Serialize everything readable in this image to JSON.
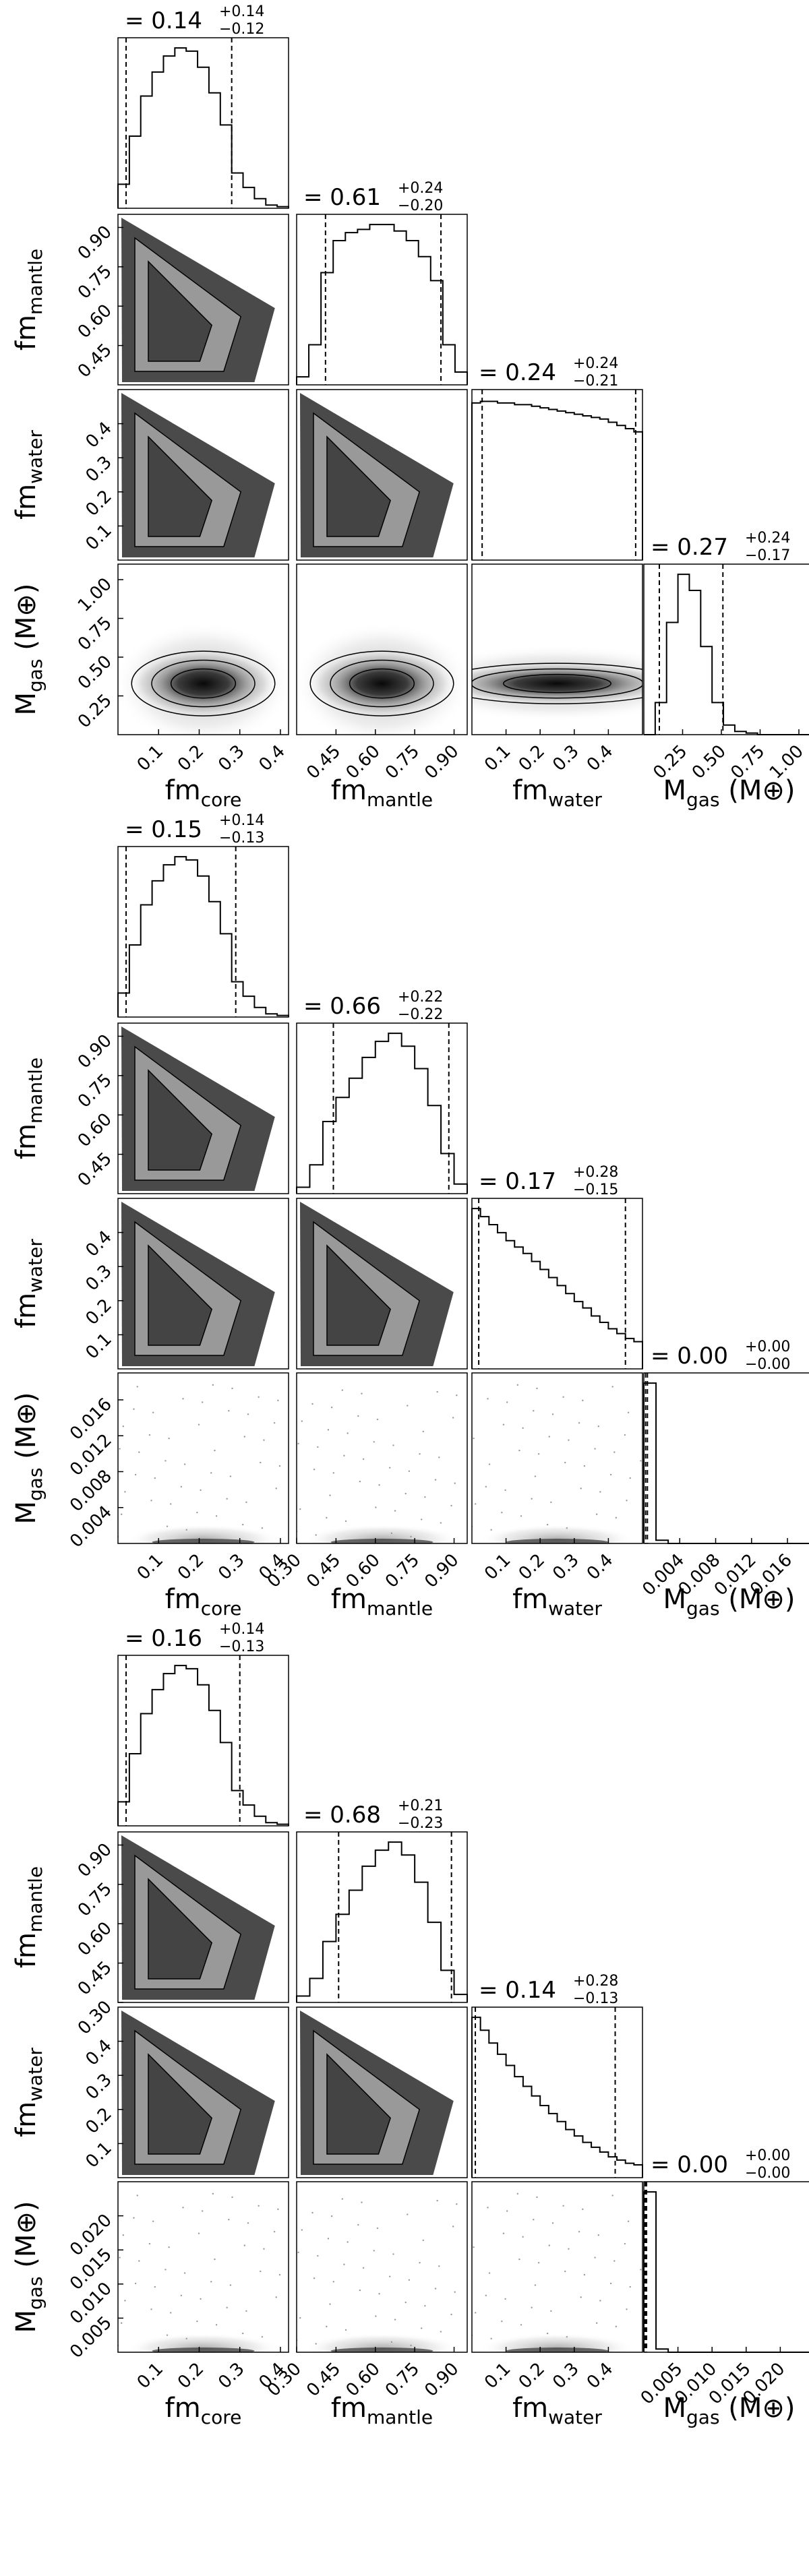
{
  "chart_data": [
    {
      "type": "corner",
      "variables": [
        "fm_core",
        "fm_mantle",
        "fm_water",
        "M_gas"
      ],
      "axis_labels": [
        {
          "main": "fm",
          "sub": "core",
          "tail": ""
        },
        {
          "main": "fm",
          "sub": "mantle",
          "tail": ""
        },
        {
          "main": "fm",
          "sub": "water",
          "tail": ""
        },
        {
          "main": "M",
          "sub": "gas",
          "tail": " (M⊕)"
        }
      ],
      "ranges": [
        [
          0.0,
          0.42
        ],
        [
          0.3,
          0.95
        ],
        [
          0.0,
          0.5
        ],
        [
          0.0,
          1.1
        ]
      ],
      "ticks": [
        [
          "0.1",
          "0.2",
          "0.3",
          "0.4"
        ],
        [
          "0.45",
          "0.60",
          "0.75",
          "0.90"
        ],
        [
          "0.1",
          "0.2",
          "0.3",
          "0.4"
        ],
        [
          "0.25",
          "0.50",
          "0.75",
          "1.00"
        ]
      ],
      "xtick_display": [
        [
          "0.1",
          "0.2",
          "0.3",
          "0.4"
        ],
        [
          "0.45",
          "0.60",
          "0.75",
          "0.90"
        ],
        [
          "0.1",
          "0.2",
          "0.3",
          "0.4"
        ],
        [
          "0.25",
          "0.50",
          "0.75",
          "1.00"
        ]
      ],
      "titles": [
        {
          "value": "0.14",
          "plus": "+0.14",
          "minus": "−0.12"
        },
        {
          "value": "0.61",
          "plus": "+0.24",
          "minus": "−0.20"
        },
        {
          "value": "0.24",
          "plus": "+0.24",
          "minus": "−0.21"
        },
        {
          "value": "0.27",
          "plus": "+0.24",
          "minus": "−0.17"
        }
      ],
      "quantiles": [
        [
          0.02,
          0.28
        ],
        [
          0.41,
          0.85
        ],
        [
          0.03,
          0.48
        ],
        [
          0.1,
          0.51
        ]
      ],
      "hist": [
        [
          0.15,
          0.45,
          0.7,
          0.85,
          0.95,
          1.0,
          0.98,
          0.88,
          0.72,
          0.52,
          0.22,
          0.13,
          0.06,
          0.02,
          0.01
        ],
        [
          0.05,
          0.25,
          0.7,
          0.9,
          0.95,
          0.97,
          1.0,
          1.0,
          0.96,
          0.9,
          0.8,
          0.65,
          0.25,
          0.08
        ],
        [
          0.98,
          0.99,
          0.99,
          0.98,
          0.98,
          0.97,
          0.97,
          0.96,
          0.95,
          0.94,
          0.93,
          0.92,
          0.91,
          0.9,
          0.89,
          0.88,
          0.86,
          0.84,
          0.82,
          0.8
        ],
        [
          0.0,
          0.2,
          0.7,
          1.0,
          0.9,
          0.55,
          0.2,
          0.06,
          0.02,
          0.01,
          0.0,
          0.0,
          0.0,
          0.0,
          0.0
        ]
      ]
    },
    {
      "type": "corner",
      "variables": [
        "fm_core",
        "fm_mantle",
        "fm_water",
        "M_gas"
      ],
      "axis_labels": [
        {
          "main": "fm",
          "sub": "core",
          "tail": ""
        },
        {
          "main": "fm",
          "sub": "mantle",
          "tail": ""
        },
        {
          "main": "fm",
          "sub": "water",
          "tail": ""
        },
        {
          "main": "M",
          "sub": "gas",
          "tail": " (M⊕)"
        }
      ],
      "ranges": [
        [
          0.0,
          0.42
        ],
        [
          0.3,
          0.95
        ],
        [
          0.0,
          0.5
        ],
        [
          0.0,
          0.019
        ]
      ],
      "ticks": [
        [
          "0.1",
          "0.2",
          "0.3",
          "0.4"
        ],
        [
          "0.45",
          "0.60",
          "0.75",
          "0.90"
        ],
        [
          "0.1",
          "0.2",
          "0.3",
          "0.4"
        ],
        [
          "0.004",
          "0.008",
          "0.012",
          "0.016"
        ]
      ],
      "xtick_display": [
        [
          "0.1",
          "0.2",
          "0.3",
          "0.4"
        ],
        [
          "0.30",
          "0.45",
          "0.60",
          "0.75",
          "0.90"
        ],
        [
          "0.1",
          "0.2",
          "0.3",
          "0.4"
        ],
        [
          "0.004",
          "0.008",
          "0.012",
          "0.016"
        ]
      ],
      "titles": [
        {
          "value": "0.15",
          "plus": "+0.14",
          "minus": "−0.13"
        },
        {
          "value": "0.66",
          "plus": "+0.22",
          "minus": "−0.22"
        },
        {
          "value": "0.17",
          "plus": "+0.28",
          "minus": "−0.15"
        },
        {
          "value": "0.00",
          "plus": "+0.00",
          "minus": "−0.00"
        }
      ],
      "quantiles": [
        [
          0.02,
          0.29
        ],
        [
          0.44,
          0.88
        ],
        [
          0.02,
          0.45
        ],
        [
          0.0002,
          0.0004
        ]
      ],
      "hist": [
        [
          0.15,
          0.45,
          0.7,
          0.85,
          0.95,
          1.0,
          0.98,
          0.88,
          0.72,
          0.52,
          0.22,
          0.13,
          0.06,
          0.02,
          0.01
        ],
        [
          0.04,
          0.18,
          0.45,
          0.6,
          0.72,
          0.85,
          0.95,
          1.0,
          0.92,
          0.78,
          0.55,
          0.25,
          0.06
        ],
        [
          1.0,
          0.95,
          0.9,
          0.85,
          0.8,
          0.76,
          0.72,
          0.67,
          0.62,
          0.57,
          0.52,
          0.47,
          0.42,
          0.38,
          0.33,
          0.29,
          0.25,
          0.22,
          0.19,
          0.17
        ],
        [
          1.0,
          0.02,
          0.0,
          0.0,
          0.0,
          0.0,
          0.0,
          0.0,
          0.0,
          0.0,
          0.0,
          0.0,
          0.0,
          0.0
        ]
      ]
    },
    {
      "type": "corner",
      "variables": [
        "fm_core",
        "fm_mantle",
        "fm_water",
        "M_gas"
      ],
      "axis_labels": [
        {
          "main": "fm",
          "sub": "core",
          "tail": ""
        },
        {
          "main": "fm",
          "sub": "mantle",
          "tail": ""
        },
        {
          "main": "fm",
          "sub": "water",
          "tail": ""
        },
        {
          "main": "M",
          "sub": "gas",
          "tail": " (M⊕)"
        }
      ],
      "ranges": [
        [
          0.0,
          0.42
        ],
        [
          0.3,
          0.95
        ],
        [
          0.0,
          0.5
        ],
        [
          0.0,
          0.025
        ]
      ],
      "ticks": [
        [
          "0.1",
          "0.2",
          "0.3",
          "0.4"
        ],
        [
          "0.30",
          "0.45",
          "0.60",
          "0.75",
          "0.90"
        ],
        [
          "0.1",
          "0.2",
          "0.3",
          "0.4"
        ],
        [
          "0.005",
          "0.010",
          "0.015",
          "0.020"
        ]
      ],
      "xtick_display": [
        [
          "0.1",
          "0.2",
          "0.3",
          "0.4"
        ],
        [
          "0.30",
          "0.45",
          "0.60",
          "0.75",
          "0.90"
        ],
        [
          "0.1",
          "0.2",
          "0.3",
          "0.4"
        ],
        [
          "0.005",
          "0.010",
          "0.015",
          "0.020"
        ]
      ],
      "titles": [
        {
          "value": "0.16",
          "plus": "+0.14",
          "minus": "−0.13"
        },
        {
          "value": "0.68",
          "plus": "+0.21",
          "minus": "−0.23"
        },
        {
          "value": "0.14",
          "plus": "+0.28",
          "minus": "−0.13"
        },
        {
          "value": "0.00",
          "plus": "+0.00",
          "minus": "−0.00"
        }
      ],
      "quantiles": [
        [
          0.02,
          0.3
        ],
        [
          0.46,
          0.89
        ],
        [
          0.01,
          0.42
        ],
        [
          0.0002,
          0.0004
        ]
      ],
      "hist": [
        [
          0.15,
          0.45,
          0.7,
          0.85,
          0.95,
          1.0,
          0.98,
          0.88,
          0.72,
          0.52,
          0.22,
          0.13,
          0.06,
          0.02,
          0.01
        ],
        [
          0.04,
          0.15,
          0.38,
          0.55,
          0.7,
          0.85,
          0.95,
          1.0,
          0.92,
          0.75,
          0.5,
          0.2,
          0.05
        ],
        [
          1.0,
          0.92,
          0.84,
          0.77,
          0.7,
          0.63,
          0.57,
          0.51,
          0.45,
          0.4,
          0.35,
          0.3,
          0.26,
          0.22,
          0.19,
          0.16,
          0.13,
          0.11,
          0.09,
          0.08
        ],
        [
          1.0,
          0.02,
          0.0,
          0.0,
          0.0,
          0.0,
          0.0,
          0.0,
          0.0,
          0.0,
          0.0,
          0.0,
          0.0,
          0.0
        ]
      ]
    }
  ]
}
